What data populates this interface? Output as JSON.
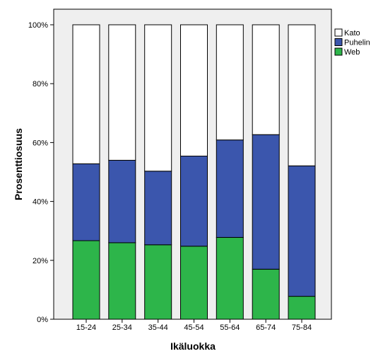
{
  "chart_data": {
    "type": "bar",
    "stacked": true,
    "normalized_percent": true,
    "categories": [
      "15-24",
      "25-34",
      "35-44",
      "45-54",
      "55-64",
      "65-74",
      "75-84"
    ],
    "series": [
      {
        "name": "Web",
        "color": "#2db54a",
        "values": [
          26.7,
          26.0,
          25.3,
          24.8,
          27.8,
          17.0,
          7.8
        ]
      },
      {
        "name": "Puhelin",
        "color": "#3b56ad",
        "values": [
          26.1,
          28.0,
          25.0,
          30.6,
          33.1,
          45.7,
          44.3
        ]
      },
      {
        "name": "Kato",
        "color": "#ffffff",
        "values": [
          47.2,
          46.0,
          49.7,
          44.6,
          39.1,
          37.3,
          47.9
        ]
      }
    ],
    "xlabel": "Ikäluokka",
    "ylabel": "Prosenttiosuus",
    "ylim": [
      0,
      100
    ],
    "yticks": [
      0,
      20,
      40,
      60,
      80,
      100
    ],
    "ytick_labels": [
      "0%",
      "20%",
      "40%",
      "60%",
      "80%",
      "100%"
    ],
    "legend": {
      "placement": "right",
      "entries": [
        {
          "name": "Kato",
          "color": "#ffffff"
        },
        {
          "name": "Puhelin",
          "color": "#3b56ad"
        },
        {
          "name": "Web",
          "color": "#2db54a"
        }
      ]
    },
    "grid": false,
    "plot_background": "#efefef"
  }
}
